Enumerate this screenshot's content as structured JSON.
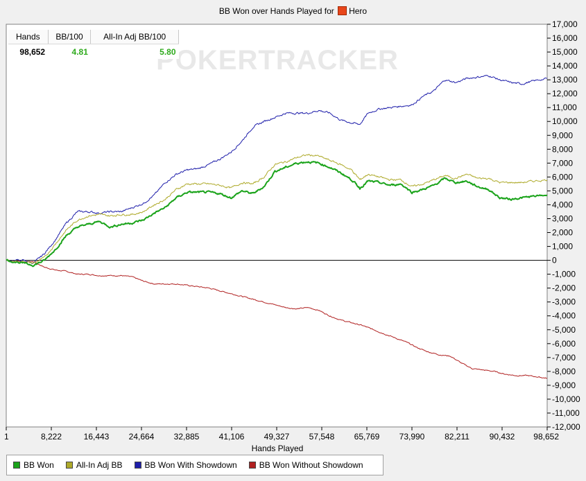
{
  "title": "BB Won over Hands Played for",
  "player": "Hero",
  "watermark": "POKERTRACKER",
  "stats": {
    "headers": [
      "Hands",
      "BB/100",
      "All-In Adj BB/100"
    ],
    "values": [
      "98,652",
      "4.81",
      "5.80"
    ]
  },
  "chart_data": {
    "type": "line",
    "title": "BB Won over Hands Played for Hero",
    "xlabel": "Hands Played",
    "ylabel": "",
    "xlim": [
      1,
      98652
    ],
    "ylim": [
      -12000,
      17000
    ],
    "x_ticks": [
      "1",
      "8,222",
      "16,443",
      "24,664",
      "32,885",
      "41,106",
      "49,327",
      "57,548",
      "65,769",
      "73,990",
      "82,211",
      "90,432",
      "98,652"
    ],
    "y_ticks": [
      "17,000",
      "16,000",
      "15,000",
      "14,000",
      "13,000",
      "12,000",
      "11,000",
      "10,000",
      "9,000",
      "8,000",
      "7,000",
      "6,000",
      "5,000",
      "4,000",
      "3,000",
      "2,000",
      "1,000",
      "0",
      "-1,000",
      "-2,000",
      "-3,000",
      "-4,000",
      "-5,000",
      "-6,000",
      "-7,000",
      "-8,000",
      "-9,000",
      "-10,000",
      "-11,000",
      "-12,000"
    ],
    "grid": false,
    "legend_position": "bottom-left",
    "series": [
      {
        "name": "BB Won",
        "color": "#1aa31a",
        "points": [
          [
            1,
            0
          ],
          [
            3000,
            -200
          ],
          [
            5000,
            -350
          ],
          [
            7000,
            0
          ],
          [
            9000,
            800
          ],
          [
            11000,
            1800
          ],
          [
            13000,
            2400
          ],
          [
            15000,
            2600
          ],
          [
            17000,
            2800
          ],
          [
            19000,
            2400
          ],
          [
            21000,
            2600
          ],
          [
            23000,
            2700
          ],
          [
            25000,
            2900
          ],
          [
            27000,
            3400
          ],
          [
            29000,
            3800
          ],
          [
            31000,
            4500
          ],
          [
            33000,
            4900
          ],
          [
            35000,
            4900
          ],
          [
            37000,
            4900
          ],
          [
            39000,
            4800
          ],
          [
            41000,
            4500
          ],
          [
            43000,
            5000
          ],
          [
            45000,
            4800
          ],
          [
            47000,
            5300
          ],
          [
            49000,
            6400
          ],
          [
            51000,
            6700
          ],
          [
            53000,
            7000
          ],
          [
            55000,
            7100
          ],
          [
            57000,
            7000
          ],
          [
            59000,
            6700
          ],
          [
            61000,
            6300
          ],
          [
            63000,
            5800
          ],
          [
            64500,
            5200
          ],
          [
            66000,
            5700
          ],
          [
            68000,
            5600
          ],
          [
            70000,
            5400
          ],
          [
            72000,
            5500
          ],
          [
            74000,
            4900
          ],
          [
            76000,
            5100
          ],
          [
            78000,
            5400
          ],
          [
            80000,
            5900
          ],
          [
            82000,
            5600
          ],
          [
            84000,
            5700
          ],
          [
            86000,
            5300
          ],
          [
            88000,
            5100
          ],
          [
            90000,
            4500
          ],
          [
            92000,
            4400
          ],
          [
            94000,
            4500
          ],
          [
            96000,
            4600
          ],
          [
            98652,
            4700
          ]
        ]
      },
      {
        "name": "All-In Adj BB",
        "color": "#aeaa2a",
        "points": [
          [
            1,
            0
          ],
          [
            3000,
            -100
          ],
          [
            5000,
            -200
          ],
          [
            7000,
            200
          ],
          [
            9000,
            1200
          ],
          [
            11000,
            2200
          ],
          [
            13000,
            2900
          ],
          [
            15000,
            3200
          ],
          [
            17000,
            3300
          ],
          [
            19000,
            3200
          ],
          [
            21000,
            3300
          ],
          [
            23000,
            3300
          ],
          [
            25000,
            3500
          ],
          [
            27000,
            4000
          ],
          [
            29000,
            4400
          ],
          [
            31000,
            5100
          ],
          [
            33000,
            5500
          ],
          [
            35000,
            5500
          ],
          [
            37000,
            5500
          ],
          [
            39000,
            5400
          ],
          [
            41000,
            5200
          ],
          [
            43000,
            5600
          ],
          [
            45000,
            5500
          ],
          [
            47000,
            6000
          ],
          [
            49000,
            6900
          ],
          [
            51000,
            7100
          ],
          [
            53000,
            7400
          ],
          [
            55000,
            7600
          ],
          [
            57000,
            7500
          ],
          [
            59000,
            7200
          ],
          [
            61000,
            6900
          ],
          [
            63000,
            6500
          ],
          [
            64500,
            5800
          ],
          [
            66000,
            6200
          ],
          [
            68000,
            6000
          ],
          [
            70000,
            5800
          ],
          [
            72000,
            5800
          ],
          [
            74000,
            5300
          ],
          [
            76000,
            5500
          ],
          [
            78000,
            5800
          ],
          [
            80000,
            6100
          ],
          [
            82000,
            5900
          ],
          [
            84000,
            6200
          ],
          [
            86000,
            5900
          ],
          [
            88000,
            5900
          ],
          [
            90000,
            5600
          ],
          [
            92000,
            5600
          ],
          [
            94000,
            5600
          ],
          [
            96000,
            5700
          ],
          [
            98652,
            5800
          ]
        ]
      },
      {
        "name": "BB Won With Showdown",
        "color": "#1e1eaa",
        "points": [
          [
            1,
            0
          ],
          [
            3000,
            0
          ],
          [
            5000,
            -200
          ],
          [
            7000,
            500
          ],
          [
            9000,
            1500
          ],
          [
            11000,
            2700
          ],
          [
            13000,
            3500
          ],
          [
            15000,
            3500
          ],
          [
            17000,
            3400
          ],
          [
            19000,
            3500
          ],
          [
            21000,
            3500
          ],
          [
            23000,
            3800
          ],
          [
            25000,
            4100
          ],
          [
            27000,
            4700
          ],
          [
            29000,
            5600
          ],
          [
            31000,
            6200
          ],
          [
            33000,
            6500
          ],
          [
            35000,
            6600
          ],
          [
            37000,
            6900
          ],
          [
            39000,
            7300
          ],
          [
            41000,
            7800
          ],
          [
            43000,
            8600
          ],
          [
            45000,
            9600
          ],
          [
            47000,
            10000
          ],
          [
            49000,
            10300
          ],
          [
            51000,
            10600
          ],
          [
            53000,
            10600
          ],
          [
            55000,
            10600
          ],
          [
            57000,
            10800
          ],
          [
            59000,
            10600
          ],
          [
            61000,
            10100
          ],
          [
            63000,
            9900
          ],
          [
            64500,
            9800
          ],
          [
            66000,
            10600
          ],
          [
            68000,
            10900
          ],
          [
            70000,
            11000
          ],
          [
            72000,
            11100
          ],
          [
            74000,
            11200
          ],
          [
            76000,
            11800
          ],
          [
            78000,
            12200
          ],
          [
            80000,
            13000
          ],
          [
            82000,
            12800
          ],
          [
            84000,
            13100
          ],
          [
            86000,
            13200
          ],
          [
            88000,
            13300
          ],
          [
            90000,
            13000
          ],
          [
            92000,
            12800
          ],
          [
            94000,
            12700
          ],
          [
            96000,
            12900
          ],
          [
            98652,
            13100
          ]
        ]
      },
      {
        "name": "BB Won Without Showdown",
        "color": "#b02020",
        "points": [
          [
            1,
            0
          ],
          [
            3000,
            -100
          ],
          [
            5000,
            -100
          ],
          [
            7000,
            -500
          ],
          [
            9000,
            -700
          ],
          [
            11000,
            -800
          ],
          [
            13000,
            -1000
          ],
          [
            15000,
            -1000
          ],
          [
            17000,
            -1100
          ],
          [
            19000,
            -1100
          ],
          [
            21000,
            -1100
          ],
          [
            23000,
            -1200
          ],
          [
            25000,
            -1500
          ],
          [
            27000,
            -1700
          ],
          [
            29000,
            -1700
          ],
          [
            31000,
            -1700
          ],
          [
            33000,
            -1800
          ],
          [
            35000,
            -1900
          ],
          [
            37000,
            -2000
          ],
          [
            39000,
            -2200
          ],
          [
            41000,
            -2400
          ],
          [
            43000,
            -2600
          ],
          [
            45000,
            -2800
          ],
          [
            47000,
            -3000
          ],
          [
            49000,
            -3200
          ],
          [
            51000,
            -3400
          ],
          [
            53000,
            -3500
          ],
          [
            55000,
            -3400
          ],
          [
            57000,
            -3600
          ],
          [
            59000,
            -4000
          ],
          [
            61000,
            -4300
          ],
          [
            63000,
            -4500
          ],
          [
            65000,
            -4700
          ],
          [
            67000,
            -5000
          ],
          [
            69000,
            -5300
          ],
          [
            71000,
            -5600
          ],
          [
            73000,
            -5900
          ],
          [
            75000,
            -6300
          ],
          [
            77000,
            -6600
          ],
          [
            79000,
            -6800
          ],
          [
            81000,
            -6900
          ],
          [
            83000,
            -7400
          ],
          [
            85000,
            -7800
          ],
          [
            87000,
            -7900
          ],
          [
            89000,
            -8000
          ],
          [
            91000,
            -8200
          ],
          [
            93000,
            -8300
          ],
          [
            95000,
            -8300
          ],
          [
            97000,
            -8400
          ],
          [
            98652,
            -8500
          ]
        ]
      }
    ]
  }
}
